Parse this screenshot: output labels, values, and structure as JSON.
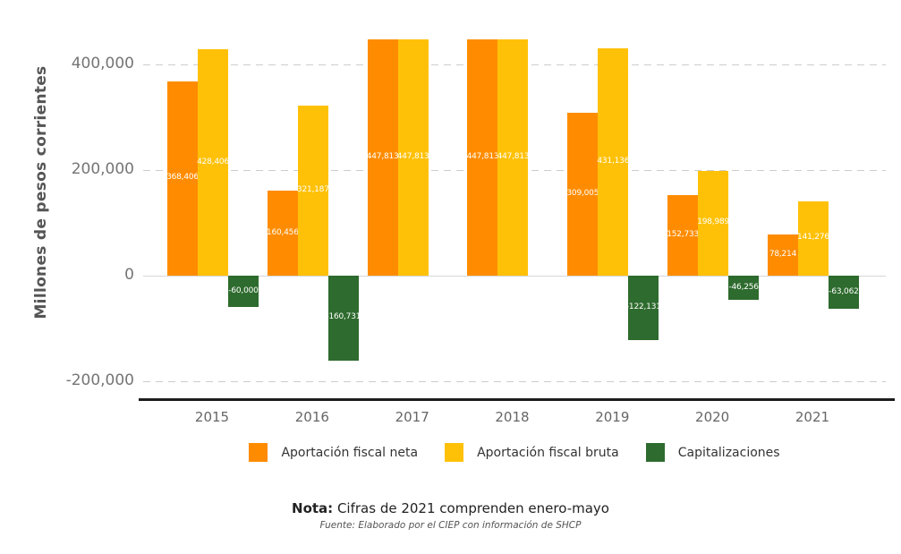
{
  "chart_data": {
    "type": "bar",
    "title": "",
    "xlabel": "",
    "ylabel": "Millones de pesos corrientes",
    "categories": [
      "2015",
      "2016",
      "2017",
      "2018",
      "2019",
      "2020",
      "2021"
    ],
    "series": [
      {
        "name": "Aportación fiscal neta",
        "color": "#FF8C00",
        "values": [
          368406,
          160456,
          447813,
          447813,
          309005,
          152733,
          78214
        ]
      },
      {
        "name": "Aportación fiscal bruta",
        "color": "#FFC107",
        "values": [
          428406,
          321187,
          447813,
          447813,
          431136,
          198989,
          141276
        ]
      },
      {
        "name": "Capitalizaciones",
        "color": "#2E6B2E",
        "values": [
          -60000,
          -160731,
          0,
          0,
          -122131,
          -46256,
          -63062
        ]
      }
    ],
    "y_ticks": [
      400000,
      200000,
      0,
      -200000
    ],
    "y_tick_labels": [
      "400,000",
      "200,000",
      "0",
      "-200,000"
    ],
    "ylim": [
      -235000,
      522000
    ],
    "grid": "horizontal-dashed",
    "legend_position": "bottom",
    "show_bar_labels": true
  },
  "note": {
    "label": "Nota:",
    "text": " Cifras de 2021 comprenden enero-mayo"
  },
  "source": {
    "text": "Fuente: Elaborado por el CIEP con información de SHCP"
  }
}
